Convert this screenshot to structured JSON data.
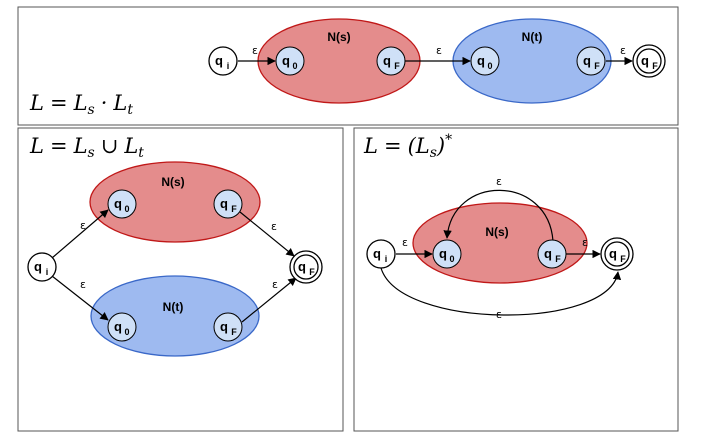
{
  "panels": [
    {
      "id": "concatenation",
      "formula": {
        "lhs": "L",
        "eq": "=",
        "a": "L",
        "a_sub": "s",
        "op": "·",
        "b": "L",
        "b_sub": "t"
      }
    },
    {
      "id": "union",
      "formula": {
        "lhs": "L",
        "eq": "=",
        "a": "L",
        "a_sub": "s",
        "op": "∪",
        "b": "L",
        "b_sub": "t"
      }
    },
    {
      "id": "kleene-star",
      "formula": {
        "lhs": "L",
        "eq": "=",
        "open": "(",
        "a": "L",
        "a_sub": "s",
        "close": ")",
        "star": "*"
      }
    }
  ],
  "states": {
    "initial": "q",
    "initial_sub": "i",
    "start": "q",
    "start_sub": "0",
    "final": "q",
    "final_sub": "F"
  },
  "machines": {
    "s": "N(s)",
    "t": "N(t)"
  },
  "epsilon": "ε",
  "colors": {
    "machine_s": "#e48c8c",
    "machine_s_border": "#c01818",
    "machine_t": "#9ebaf0",
    "machine_t_border": "#3a68c8",
    "inner_state": "#cfe0f7"
  }
}
